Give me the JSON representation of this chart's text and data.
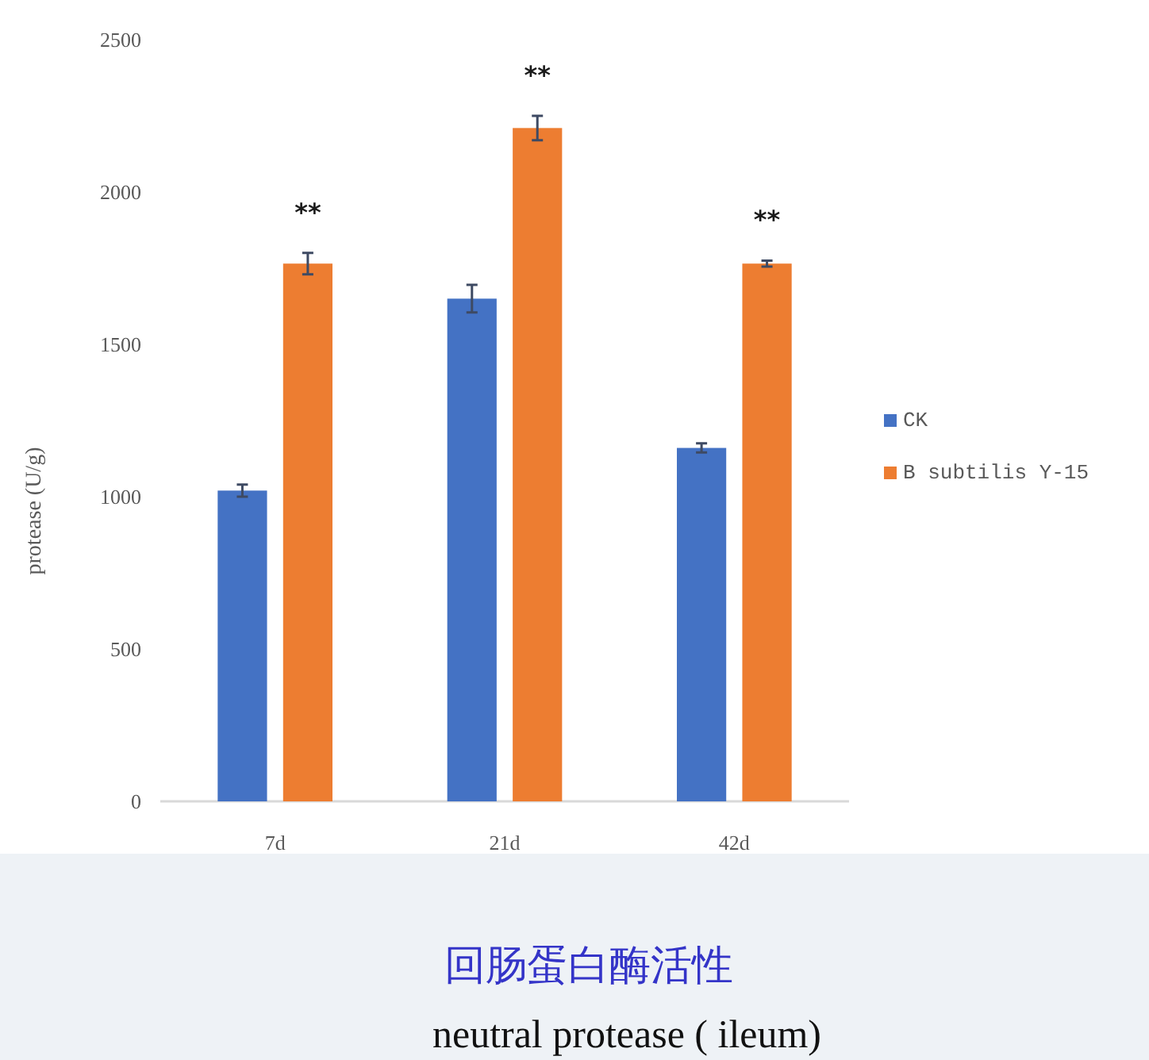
{
  "chart_data": {
    "type": "bar",
    "title": "回肠蛋白酶活性",
    "subtitle": "neutral protease ( ileum)",
    "ylabel": "protease (U/g)",
    "categories": [
      "7d",
      "21d",
      "42d"
    ],
    "series": [
      {
        "name": "CK",
        "color": "#4472c4",
        "values": [
          1020,
          1650,
          1160
        ],
        "errors": [
          20,
          45,
          15
        ]
      },
      {
        "name": "B subtilis Y-15",
        "color": "#ed7d31",
        "values": [
          1765,
          2210,
          1765
        ],
        "errors": [
          35,
          40,
          10
        ]
      }
    ],
    "ylim": [
      0,
      2500
    ],
    "yticks": [
      0,
      500,
      1000,
      1500,
      2000,
      2500
    ],
    "grid": false,
    "legend": "right",
    "annotations": [
      "**",
      "**",
      "**"
    ]
  }
}
